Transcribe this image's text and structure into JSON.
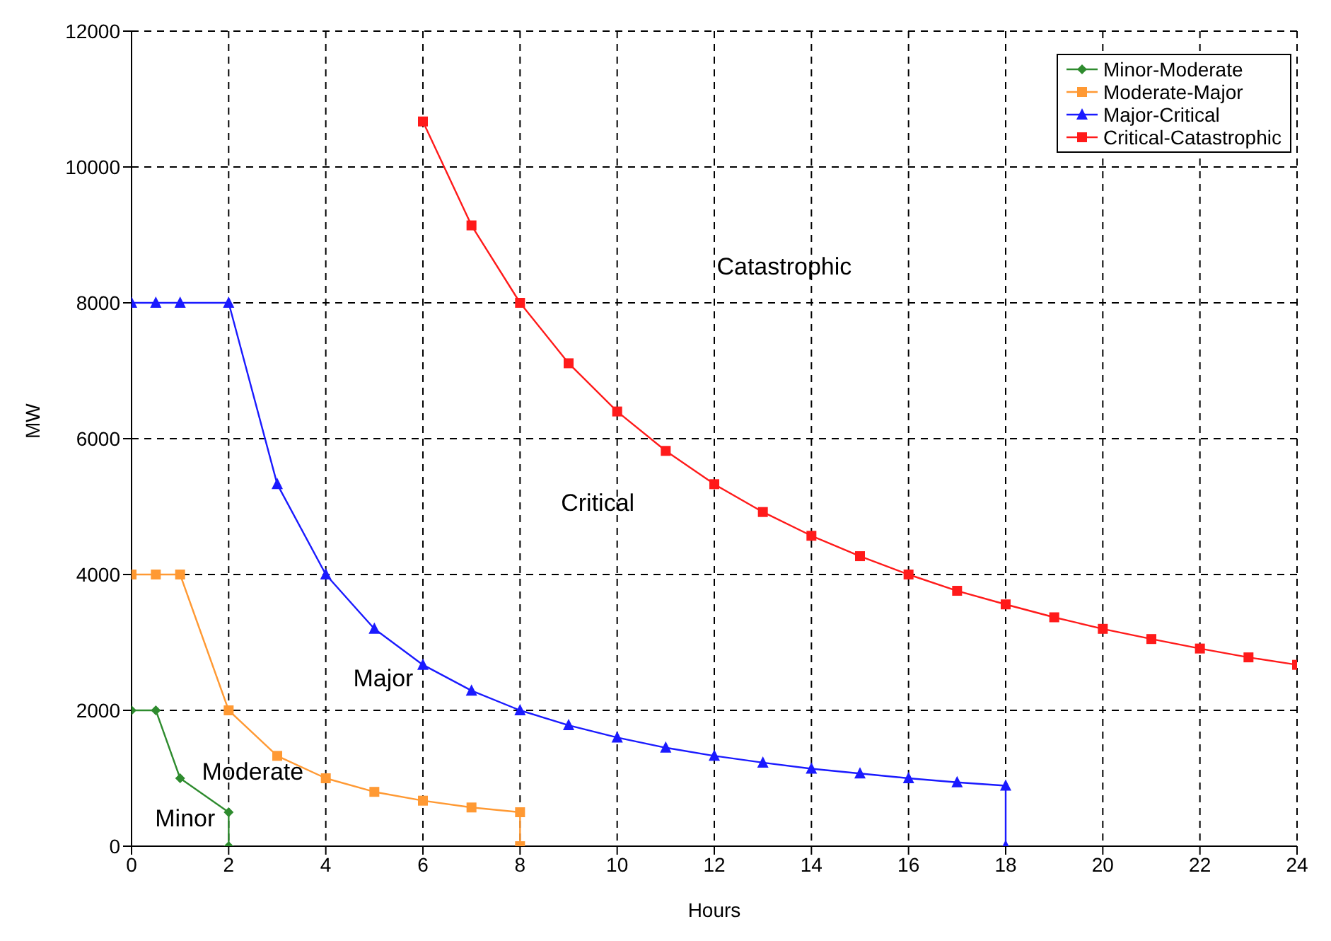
{
  "chart_data": {
    "type": "line",
    "xlabel": "Hours",
    "ylabel": "MW",
    "xlim": [
      0,
      24
    ],
    "ylim": [
      0,
      12000
    ],
    "xticks": [
      0,
      2,
      4,
      6,
      8,
      10,
      12,
      14,
      16,
      18,
      20,
      22,
      24
    ],
    "yticks": [
      0,
      2000,
      4000,
      6000,
      8000,
      10000,
      12000
    ],
    "grid": true,
    "legend": "top right",
    "line_style": "solid",
    "series": [
      {
        "name": "Minor-Moderate",
        "color": "#2e8b2e",
        "marker": "diamond",
        "x": [
          0,
          0.5,
          1,
          2,
          2
        ],
        "values": [
          2000,
          2000,
          1000,
          500,
          0
        ]
      },
      {
        "name": "Moderate-Major",
        "color": "#ff9933",
        "marker": "square",
        "x": [
          0,
          0.5,
          1,
          2,
          3,
          4,
          5,
          6,
          7,
          8,
          8
        ],
        "values": [
          4000,
          4000,
          4000,
          2000,
          1330,
          1000,
          800,
          670,
          570,
          500,
          0
        ]
      },
      {
        "name": "Major-Critical",
        "color": "#1a1aff",
        "marker": "triangle",
        "x": [
          0,
          0.5,
          1,
          2,
          3,
          4,
          5,
          6,
          7,
          8,
          9,
          10,
          11,
          12,
          13,
          14,
          15,
          16,
          17,
          18,
          18
        ],
        "values": [
          8000,
          8000,
          8000,
          8000,
          5330,
          4000,
          3200,
          2670,
          2290,
          2000,
          1780,
          1600,
          1450,
          1330,
          1230,
          1140,
          1070,
          1000,
          940,
          890,
          0
        ]
      },
      {
        "name": "Critical-Catastrophic",
        "color": "#ff1a1a",
        "marker": "square",
        "x": [
          6,
          7,
          8,
          9,
          10,
          11,
          12,
          13,
          14,
          15,
          16,
          17,
          18,
          19,
          20,
          21,
          22,
          23,
          24
        ],
        "values": [
          10670,
          9140,
          8000,
          7110,
          6400,
          5820,
          5330,
          4920,
          4570,
          4270,
          4000,
          3760,
          3560,
          3370,
          3200,
          3050,
          2910,
          2780,
          2670
        ]
      }
    ],
    "annotations": [
      "Catastrophic",
      "Critical",
      "Major",
      "Moderate",
      "Minor"
    ]
  }
}
